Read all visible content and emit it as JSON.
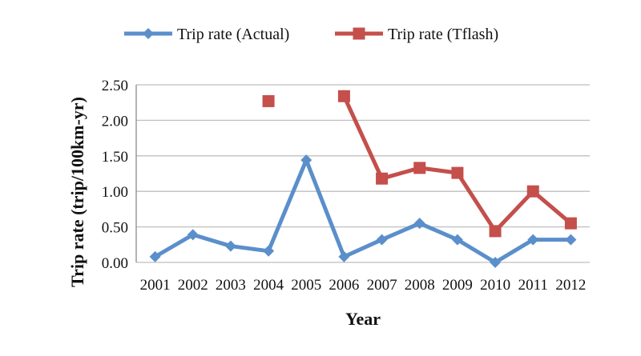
{
  "chart_data": {
    "type": "line",
    "title": "",
    "xlabel": "Year",
    "ylabel": "Trip rate (trip/100km-yr)",
    "categories": [
      "2001",
      "2002",
      "2003",
      "2004",
      "2005",
      "2006",
      "2007",
      "2008",
      "2009",
      "2010",
      "2011",
      "2012"
    ],
    "yticks": [
      "0.00",
      "0.50",
      "1.00",
      "1.50",
      "2.00",
      "2.50"
    ],
    "ylim": [
      0,
      2.5
    ],
    "grid": true,
    "legend_position": "top",
    "series": [
      {
        "name": "Trip rate (Actual)",
        "color": "#5b8fcb",
        "marker": "diamond",
        "values": [
          0.08,
          0.39,
          0.23,
          0.16,
          1.44,
          0.08,
          0.32,
          0.55,
          0.32,
          0.0,
          0.32,
          0.32
        ]
      },
      {
        "name": "Trip rate (Tflash)",
        "color": "#c44f4b",
        "marker": "square",
        "values": [
          null,
          null,
          null,
          2.27,
          null,
          2.34,
          1.18,
          1.33,
          1.26,
          0.44,
          1.0,
          0.55
        ]
      }
    ]
  }
}
